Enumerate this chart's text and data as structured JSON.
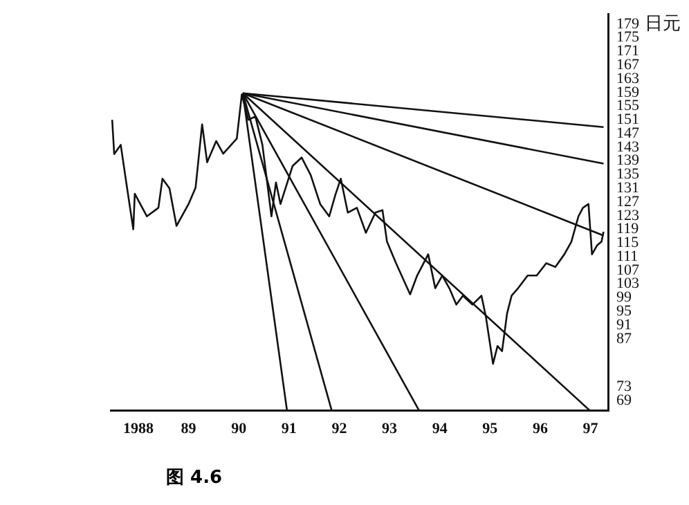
{
  "chart_data": {
    "type": "line",
    "ylabel": "日元",
    "annotations": [
      "图 4.6"
    ],
    "legend": false,
    "grid": false,
    "marker": "none",
    "line_style": "solid",
    "xlim": [
      1987.45,
      1997.35
    ],
    "ylim": [
      66,
      182
    ],
    "xticks": [
      {
        "value": 1988,
        "label": "1988"
      },
      {
        "value": 1989,
        "label": "89"
      },
      {
        "value": 1990,
        "label": "90"
      },
      {
        "value": 1991,
        "label": "91"
      },
      {
        "value": 1992,
        "label": "92"
      },
      {
        "value": 1993,
        "label": "93"
      },
      {
        "value": 1994,
        "label": "94"
      },
      {
        "value": 1995,
        "label": "95"
      },
      {
        "value": 1996,
        "label": "96"
      },
      {
        "value": 1997,
        "label": "97"
      }
    ],
    "yticks": [
      179,
      175,
      171,
      167,
      163,
      159,
      155,
      151,
      147,
      143,
      139,
      135,
      131,
      127,
      123,
      119,
      115,
      111,
      107,
      103,
      99,
      95,
      91,
      87,
      73,
      69
    ],
    "series": [
      {
        "color": "#111111",
        "x": [
          1987.48,
          1987.52,
          1987.65,
          1987.76,
          1987.9,
          1987.93,
          1988.17,
          1988.4,
          1988.48,
          1988.62,
          1988.76,
          1989.0,
          1989.14,
          1989.27,
          1989.37,
          1989.55,
          1989.69,
          1989.96,
          1990.06,
          1990.19,
          1990.33,
          1990.47,
          1990.65,
          1990.74,
          1990.83,
          1991.07,
          1991.25,
          1991.43,
          1991.62,
          1991.8,
          1991.92,
          1992.03,
          1992.17,
          1992.35,
          1992.53,
          1992.72,
          1992.86,
          1992.95,
          1993.13,
          1993.41,
          1993.55,
          1993.77,
          1993.91,
          1994.05,
          1994.19,
          1994.33,
          1994.46,
          1994.65,
          1994.83,
          1994.92,
          1995.06,
          1995.15,
          1995.24,
          1995.34,
          1995.43,
          1995.56,
          1995.75,
          1995.93,
          1996.12,
          1996.3,
          1996.48,
          1996.62,
          1996.76,
          1996.85,
          1996.96,
          1997.03,
          1997.13,
          1997.22,
          1997.26
        ],
        "values": [
          151,
          141,
          143.7,
          132.7,
          119,
          129.4,
          122.8,
          125.3,
          133.8,
          131,
          120,
          126.4,
          131.2,
          149.7,
          138.6,
          144.8,
          141.1,
          145.5,
          158.4,
          151,
          152,
          143.7,
          122.8,
          132.7,
          126.4,
          137.5,
          140,
          134.9,
          126.4,
          122.8,
          129,
          133.8,
          123.9,
          125.3,
          118,
          123.9,
          124.6,
          115.4,
          109.1,
          100,
          105.5,
          111.7,
          101.8,
          105.5,
          101.8,
          97,
          99.6,
          97,
          99.6,
          93.3,
          79.7,
          84.9,
          83.4,
          94.4,
          99.6,
          101.8,
          105.5,
          105.5,
          109.1,
          108,
          111.7,
          115.4,
          122.8,
          125.3,
          126.4,
          111.7,
          114.3,
          115.4,
          118.3
        ]
      },
      {
        "color": "#111111",
        "x": [
          1990.08,
          1997.26
        ],
        "values": [
          158.8,
          148.9
        ]
      },
      {
        "color": "#111111",
        "x": [
          1990.08,
          1997.26
        ],
        "values": [
          158.8,
          138.2
        ]
      },
      {
        "color": "#111111",
        "x": [
          1990.08,
          1997.26
        ],
        "values": [
          158.8,
          117.2
        ]
      },
      {
        "color": "#111111",
        "x": [
          1990.08,
          1996.99
        ],
        "values": [
          158.8,
          66
        ]
      },
      {
        "color": "#111111",
        "x": [
          1990.08,
          1993.59
        ],
        "values": [
          158.8,
          66
        ]
      },
      {
        "color": "#111111",
        "x": [
          1990.08,
          1991.85
        ],
        "values": [
          158.8,
          66
        ]
      },
      {
        "color": "#111111",
        "x": [
          1990.08,
          1990.96
        ],
        "values": [
          158.8,
          66
        ]
      }
    ]
  }
}
